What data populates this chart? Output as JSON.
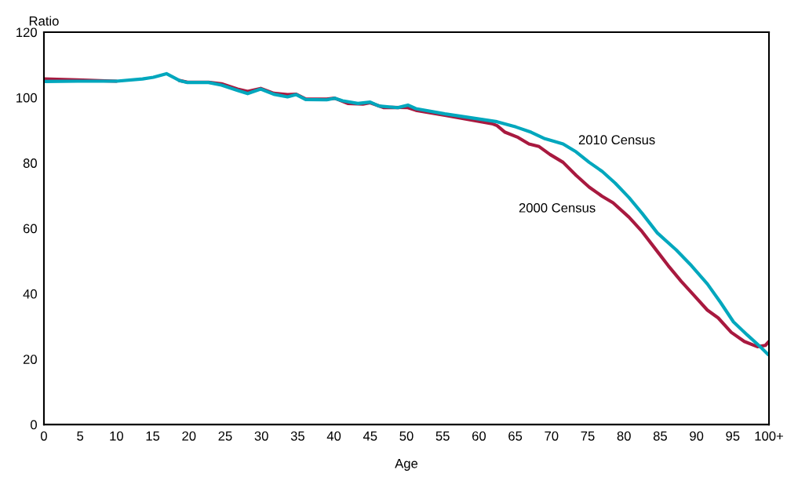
{
  "chart_data": {
    "type": "line",
    "xlabel": "Age",
    "ylabel": "Ratio",
    "xlim": [
      0,
      100
    ],
    "ylim": [
      0,
      120
    ],
    "xticks": [
      0,
      5,
      10,
      15,
      20,
      25,
      30,
      35,
      40,
      45,
      50,
      55,
      60,
      65,
      70,
      75,
      80,
      85,
      90,
      95,
      {
        "value": 100,
        "label": "100+"
      }
    ],
    "yticks": [
      0,
      20,
      40,
      60,
      80,
      100,
      120
    ],
    "grid": false,
    "legend": false,
    "marker": "none",
    "line_style": "solid",
    "series": [
      {
        "name": "2000 Census",
        "color": "#a8193f",
        "x": [
          0,
          4.6,
          10,
          13.6,
          15.1,
          16.9,
          18.7,
          19.8,
          22.7,
          24.5,
          26.7,
          28.1,
          29.9,
          31.7,
          33.6,
          34.8,
          36.1,
          39,
          40.1,
          41.9,
          44,
          45,
          46.9,
          48,
          50.2,
          51.3,
          55.3,
          61.8,
          62.5,
          63.6,
          65.4,
          66.9,
          68.3,
          69.8,
          71.6,
          73.4,
          75.2,
          77,
          78.5,
          80.7,
          82.5,
          84.3,
          86.1,
          87.9,
          89.7,
          91.5,
          93,
          94.8,
          96.6,
          98.4,
          99.5,
          100
        ],
        "values": [
          105.7,
          105.4,
          105,
          null,
          null,
          null,
          105.2,
          104.7,
          104.7,
          104.2,
          102.6,
          101.9,
          102.8,
          101.3,
          100.9,
          101,
          99.6,
          99.5,
          99.8,
          98.2,
          98,
          98.4,
          96.9,
          97,
          96.9,
          96.1,
          94.6,
          92,
          91.4,
          89.4,
          87.8,
          85.8,
          85,
          82.6,
          80.2,
          76.2,
          72.6,
          69.8,
          67.8,
          63.4,
          59,
          53.8,
          48.6,
          43.8,
          39.4,
          35,
          32.6,
          28.2,
          25.4,
          23.8,
          24.2,
          25.4
        ]
      },
      {
        "name": "2010 Census",
        "color": "#00a7bd",
        "x": [
          0,
          4.6,
          10,
          13.6,
          15.1,
          16.9,
          18.7,
          19.8,
          22.7,
          24.5,
          26.7,
          28.1,
          29.9,
          31.7,
          33.6,
          34.8,
          36.1,
          39,
          40.1,
          41.2,
          43.3,
          45,
          46.2,
          48.8,
          50.2,
          51.3,
          55.3,
          62.5,
          65.1,
          67.2,
          69.1,
          70.5,
          71.6,
          73.4,
          75.2,
          77,
          78.8,
          80.7,
          82.5,
          84.6,
          87.2,
          89.3,
          91.5,
          93.3,
          95.1,
          97,
          98.8,
          99.9
        ],
        "values": [
          104.9,
          105,
          105,
          105.7,
          106.2,
          107.3,
          105.2,
          104.6,
          104.6,
          103.8,
          102.2,
          101.2,
          102.6,
          101,
          100.2,
          100.9,
          99.4,
          99.3,
          99.8,
          99,
          98.2,
          98.6,
          97.4,
          96.9,
          97.7,
          96.6,
          95,
          92.6,
          91,
          89.4,
          87.4,
          86.5,
          85.8,
          83.4,
          80.2,
          77.4,
          73.8,
          69.4,
          64.6,
          58.6,
          53.4,
          48.6,
          43,
          37.4,
          31.4,
          27.4,
          23.8,
          21.4
        ]
      }
    ]
  }
}
